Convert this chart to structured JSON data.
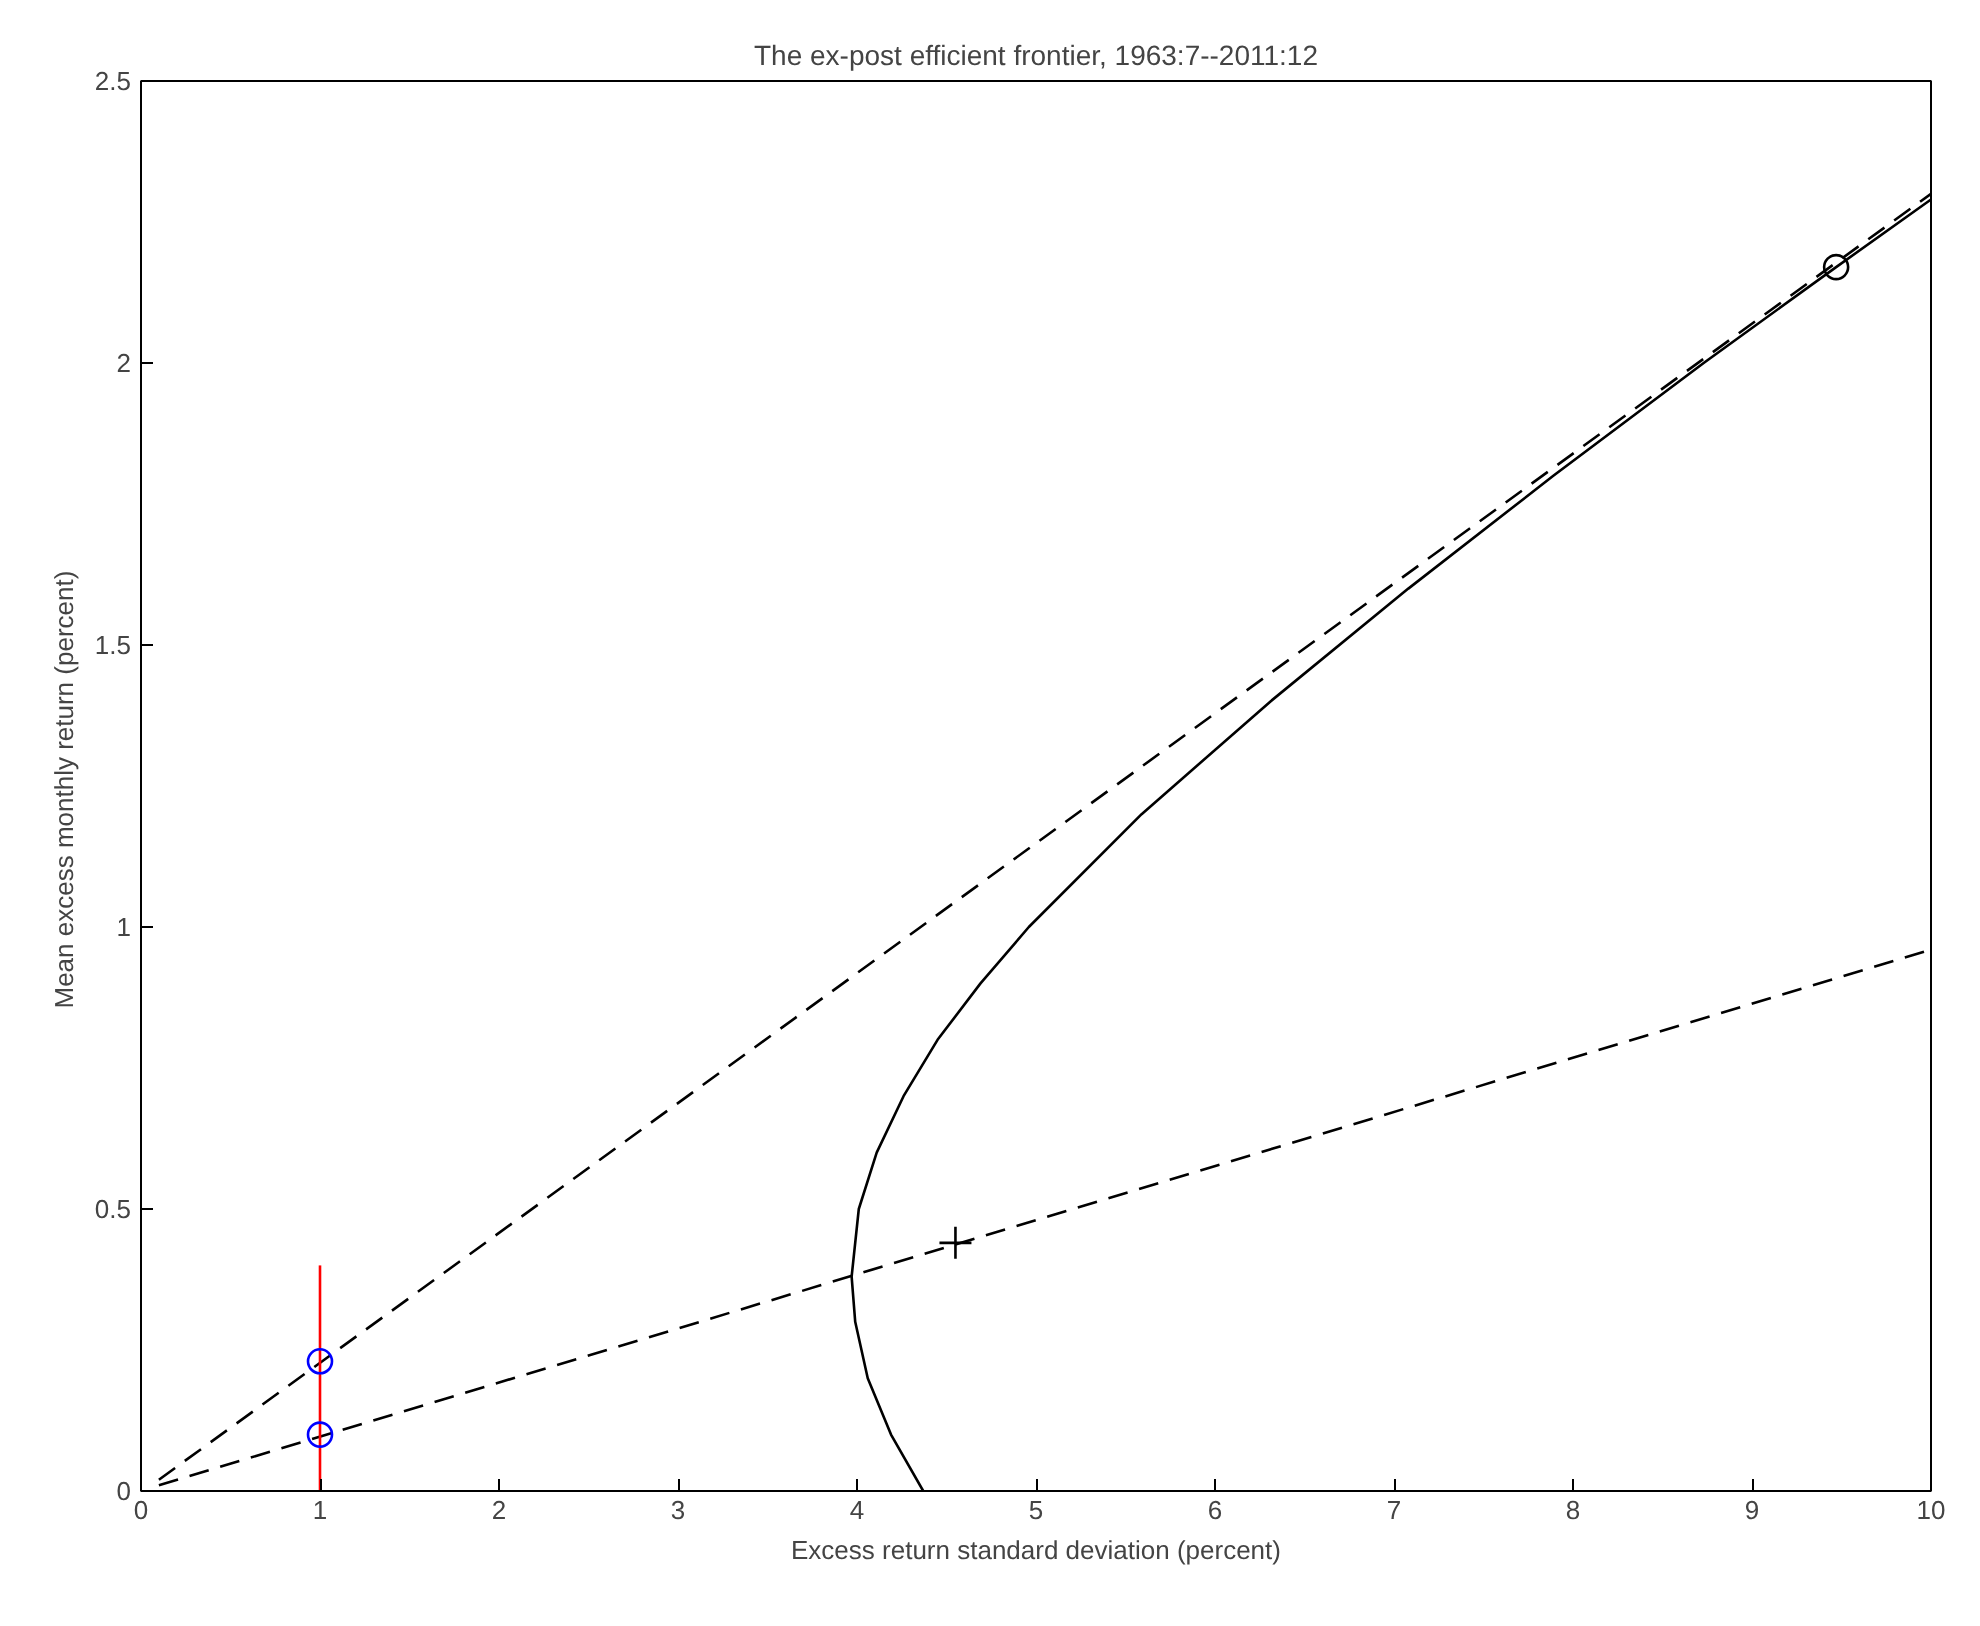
{
  "chart_data": {
    "type": "line",
    "title": "The ex-post efficient frontier, 1963:7--2011:12",
    "xlabel": "Excess return standard deviation (percent)",
    "ylabel": "Mean excess monthly return  (percent)",
    "xlim": [
      0,
      10
    ],
    "ylim": [
      0,
      2.5
    ],
    "xticks": [
      0,
      1,
      2,
      3,
      4,
      5,
      6,
      7,
      8,
      9,
      10
    ],
    "yticks": [
      0,
      0.5,
      1,
      1.5,
      2,
      2.5
    ],
    "grid": false,
    "series": [
      {
        "color": "#000000",
        "line_style": "dashed",
        "x": [
          0.1,
          10
        ],
        "values": [
          0.02,
          2.3
        ]
      },
      {
        "color": "#000000",
        "line_style": "dashed",
        "x": [
          0.1,
          10
        ],
        "values": [
          0.01,
          0.96
        ]
      },
      {
        "color": "#000000",
        "line_style": "solid",
        "x": [
          4.37,
          4.19,
          4.06,
          3.99,
          3.97,
          4.01,
          4.11,
          4.26,
          4.45,
          4.69,
          4.96,
          5.59,
          6.31,
          7.08,
          7.89,
          8.73,
          9.47,
          10
        ],
        "values": [
          0,
          0.1,
          0.2,
          0.3,
          0.38,
          0.5,
          0.6,
          0.7,
          0.8,
          0.9,
          1.0,
          1.2,
          1.4,
          1.6,
          1.8,
          2.0,
          2.17,
          2.29
        ]
      },
      {
        "color": "#ff0000",
        "line_style": "solid",
        "x": [
          1,
          1
        ],
        "values": [
          0,
          0.4
        ]
      },
      {
        "type": "scatter",
        "color": "#0000ff",
        "marker": "circle",
        "x": [
          1,
          1
        ],
        "values": [
          0.23,
          0.1
        ]
      },
      {
        "type": "scatter",
        "color": "#000000",
        "marker": "circle",
        "x": [
          9.47
        ],
        "values": [
          2.17
        ]
      },
      {
        "type": "scatter",
        "color": "#000000",
        "marker": "cross",
        "x": [
          4.55
        ],
        "values": [
          0.44
        ]
      }
    ]
  }
}
